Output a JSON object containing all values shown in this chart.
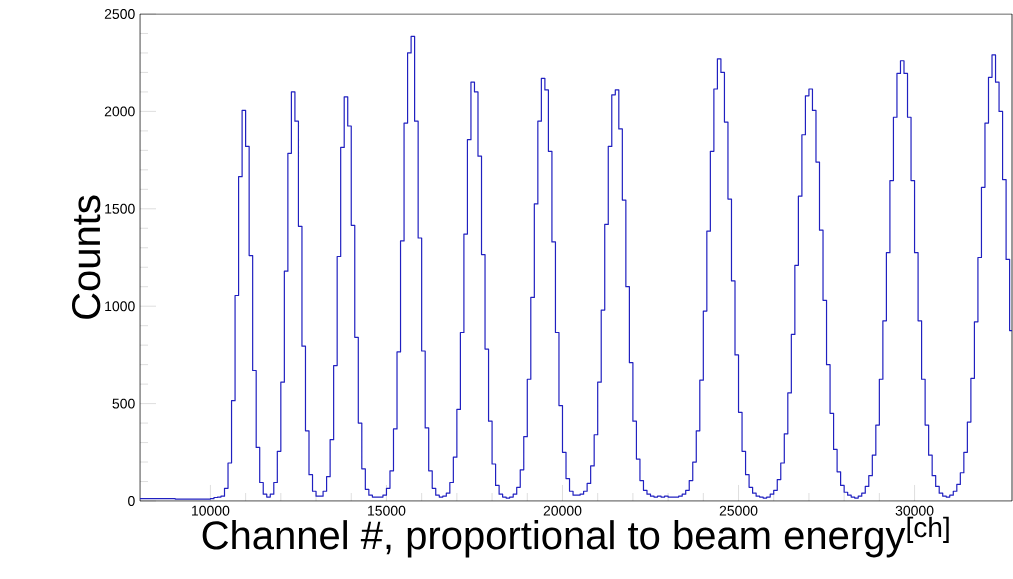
{
  "chart_data": {
    "type": "histogram",
    "xlabel": "Channel #, proportional to beam energy$^{[ch]}$",
    "ylabel": "Counts",
    "color": "#2020c0",
    "xlim": [
      8000,
      32768
    ],
    "ylim": [
      0,
      2500
    ],
    "xticks": [
      10000,
      15000,
      20000,
      25000,
      30000
    ],
    "yticks": [
      0,
      500,
      1000,
      1500,
      2000,
      2500
    ],
    "bins": [
      8000,
      9000,
      10000,
      10100,
      10200,
      10300,
      10400,
      10500,
      10600,
      10700,
      10800,
      10900,
      11000,
      11100,
      11200,
      11300,
      11400,
      11500,
      11600,
      11700,
      11800,
      11900,
      12000,
      12100,
      12200,
      12300,
      12400,
      12500,
      12600,
      12700,
      12800,
      12900,
      13000,
      13100,
      13200,
      13300,
      13400,
      13500,
      13600,
      13700,
      13800,
      13900,
      14000,
      14100,
      14200,
      14300,
      14400,
      14500,
      14600,
      14700,
      14800,
      14900,
      15000,
      15100,
      15200,
      15300,
      15400,
      15500,
      15600,
      15700,
      15800,
      15900,
      16000,
      16100,
      16200,
      16300,
      16400,
      16500,
      16600,
      16700,
      16800,
      16900,
      17000,
      17100,
      17200,
      17300,
      17400,
      17500,
      17600,
      17700,
      17800,
      17900,
      18000,
      18100,
      18200,
      18300,
      18400,
      18500,
      18600,
      18700,
      18800,
      18900,
      19000,
      19100,
      19200,
      19300,
      19400,
      19500,
      19600,
      19700,
      19800,
      19900,
      20000,
      20100,
      20200,
      20300,
      20400,
      20500,
      20600,
      20700,
      20800,
      20900,
      21000,
      21100,
      21200,
      21300,
      21400,
      21500,
      21600,
      21700,
      21800,
      21900,
      22000,
      22100,
      22200,
      22300,
      22400,
      22500,
      22600,
      22700,
      22800,
      22900,
      23000,
      23100,
      23200,
      23300,
      23400,
      23500,
      23600,
      23700,
      23800,
      23900,
      24000,
      24100,
      24200,
      24300,
      24400,
      24500,
      24600,
      24700,
      24800,
      24900,
      25000,
      25100,
      25200,
      25300,
      25400,
      25500,
      25600,
      25700,
      25800,
      25900,
      26000,
      26100,
      26200,
      26300,
      26400,
      26500,
      26600,
      26700,
      26800,
      26900,
      27000,
      27100,
      27200,
      27300,
      27400,
      27500,
      27600,
      27700,
      27800,
      27900,
      28000,
      28100,
      28200,
      28300,
      28400,
      28500,
      28600,
      28700,
      28800,
      28900,
      29000,
      29100,
      29200,
      29300,
      29400,
      29500,
      29600,
      29700,
      29800,
      29900,
      30000,
      30100,
      30200,
      30300,
      30400,
      30500,
      30600,
      30700,
      30800,
      30900,
      31000,
      31100,
      31200,
      31300,
      31400,
      31500,
      31600,
      31700,
      31800,
      31900,
      32000,
      32100,
      32200,
      32300,
      32400,
      32500,
      32600,
      32700,
      32768
    ],
    "values": [
      12,
      10,
      12,
      18,
      20,
      25,
      65,
      195,
      515,
      1055,
      1665,
      2005,
      1820,
      1260,
      670,
      275,
      95,
      35,
      20,
      35,
      95,
      255,
      610,
      1180,
      1785,
      2100,
      1950,
      1410,
      795,
      360,
      135,
      50,
      25,
      25,
      50,
      125,
      315,
      695,
      1255,
      1815,
      2075,
      1925,
      1415,
      840,
      400,
      165,
      60,
      30,
      20,
      20,
      20,
      30,
      65,
      155,
      370,
      765,
      1335,
      1940,
      2300,
      2385,
      1950,
      1350,
      770,
      375,
      155,
      65,
      30,
      20,
      25,
      40,
      95,
      225,
      470,
      865,
      1370,
      1855,
      2150,
      2100,
      1770,
      1265,
      780,
      410,
      190,
      80,
      35,
      20,
      15,
      20,
      35,
      70,
      160,
      330,
      625,
      1045,
      1525,
      1950,
      2170,
      2110,
      1795,
      1330,
      865,
      490,
      250,
      115,
      50,
      30,
      30,
      35,
      50,
      90,
      180,
      340,
      610,
      980,
      1420,
      1820,
      2085,
      2110,
      1910,
      1545,
      1100,
      710,
      410,
      215,
      105,
      55,
      35,
      25,
      20,
      25,
      20,
      25,
      20,
      20,
      20,
      25,
      35,
      55,
      105,
      200,
      360,
      620,
      975,
      1385,
      1795,
      2115,
      2270,
      2200,
      1945,
      1550,
      1130,
      750,
      455,
      255,
      135,
      70,
      40,
      25,
      20,
      15,
      20,
      35,
      55,
      110,
      195,
      345,
      555,
      855,
      1210,
      1565,
      1880,
      2080,
      2115,
      2005,
      1740,
      1390,
      1030,
      700,
      450,
      265,
      150,
      80,
      45,
      30,
      20,
      15,
      25,
      40,
      75,
      130,
      235,
      390,
      625,
      925,
      1275,
      1645,
      1970,
      2195,
      2260,
      2195,
      1970,
      1645,
      1275,
      925,
      625,
      390,
      235,
      130,
      75,
      40,
      25,
      20,
      30,
      50,
      85,
      145,
      250,
      405,
      630,
      920,
      1250,
      1610,
      1940,
      2175,
      2290,
      2150,
      2000,
      1650,
      1240,
      875
    ]
  }
}
